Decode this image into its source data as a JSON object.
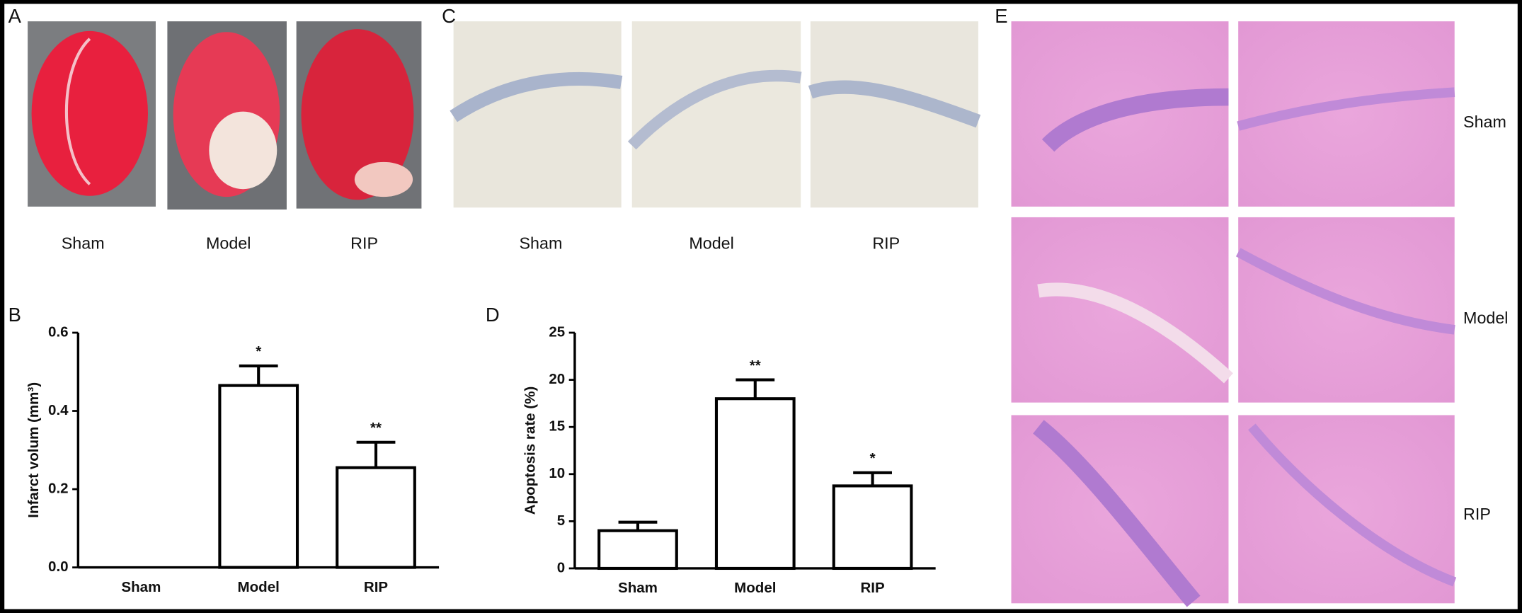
{
  "photo_panels": [
    {
      "label": "A",
      "captions": [
        "Sham",
        "Model",
        "RIP"
      ]
    },
    {
      "label": "C",
      "captions": [
        "Sham",
        "Model",
        "RIP"
      ]
    },
    {
      "label": "E",
      "row_labels": [
        "Sham",
        "Model",
        "RIP"
      ]
    }
  ],
  "chart_data": [
    {
      "type": "bar",
      "label": "B",
      "y_label": "Infarct volum (mm³)",
      "categories": [
        "Sham",
        "Model",
        "RIP"
      ],
      "values": [
        0,
        0.465,
        0.255
      ],
      "errors": [
        0,
        0.05,
        0.065
      ],
      "color": "#ffffff",
      "annotations": [
        {
          "category": "Model",
          "text": "*"
        },
        {
          "category": "RIP",
          "text": "**"
        }
      ],
      "ylim": [
        0,
        0.6
      ],
      "yticks": [
        {
          "value": 0,
          "label": "0.0"
        },
        0.2,
        0.4,
        0.6
      ]
    },
    {
      "type": "bar",
      "label": "D",
      "y_label": "Apoptosis rate (%)",
      "categories": [
        "Sham",
        "Model",
        "RIP"
      ],
      "values": [
        4.0,
        18.0,
        8.75
      ],
      "errors": [
        0.9,
        2.0,
        1.4
      ],
      "color": "#ffffff",
      "annotations": [
        {
          "category": "Model",
          "text": "**"
        },
        {
          "category": "RIP",
          "text": "*"
        }
      ],
      "ylim": [
        0,
        25
      ],
      "yticks": [
        0,
        5,
        10,
        15,
        20,
        25
      ]
    }
  ]
}
